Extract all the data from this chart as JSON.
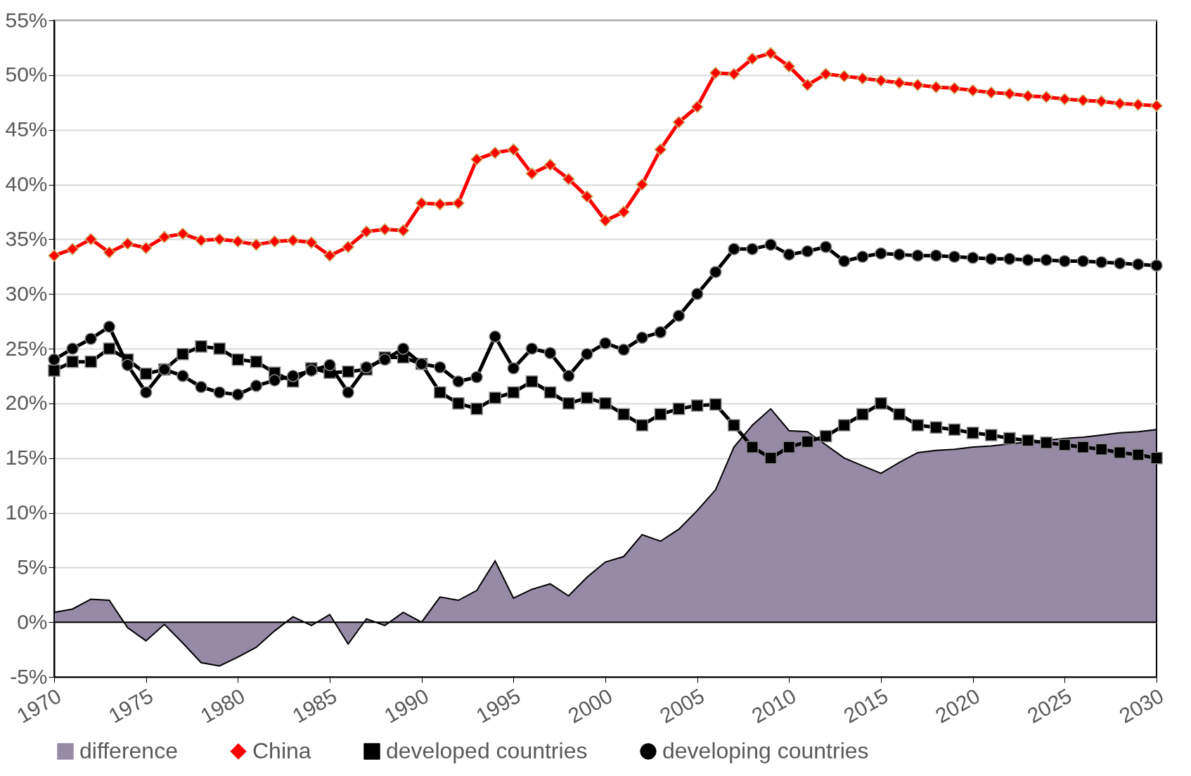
{
  "chart_data": {
    "type": "line",
    "x": [
      1970,
      1971,
      1972,
      1973,
      1974,
      1975,
      1976,
      1977,
      1978,
      1979,
      1980,
      1981,
      1982,
      1983,
      1984,
      1985,
      1986,
      1987,
      1988,
      1989,
      1990,
      1991,
      1992,
      1993,
      1994,
      1995,
      1996,
      1997,
      1998,
      1999,
      2000,
      2001,
      2002,
      2003,
      2004,
      2005,
      2006,
      2007,
      2008,
      2009,
      2010,
      2011,
      2012,
      2013,
      2014,
      2015,
      2016,
      2017,
      2018,
      2019,
      2020,
      2021,
      2022,
      2023,
      2024,
      2025,
      2026,
      2027,
      2028,
      2029,
      2030
    ],
    "series": [
      {
        "name": "difference",
        "type": "area",
        "color": "#978aa6",
        "values": [
          0.9,
          1.2,
          2.1,
          2.0,
          -0.5,
          -1.7,
          -0.2,
          -1.9,
          -3.7,
          -4.0,
          -3.2,
          -2.3,
          -0.8,
          0.5,
          -0.3,
          0.7,
          -2.0,
          0.3,
          -0.3,
          0.9,
          0.0,
          2.3,
          2.0,
          2.9,
          5.6,
          2.2,
          3.0,
          3.5,
          2.4,
          4.1,
          5.5,
          6.0,
          8.0,
          7.4,
          8.5,
          10.2,
          12.1,
          16.0,
          18.0,
          19.5,
          17.5,
          17.4,
          null,
          15.0,
          14.3,
          13.6,
          14.6,
          15.5,
          15.7,
          15.8,
          16.0,
          16.1,
          16.3,
          null,
          null,
          16.8,
          16.9,
          17.1,
          17.3,
          17.4,
          17.6
        ]
      },
      {
        "name": "China",
        "type": "line",
        "color": "#ff0000",
        "marker": "diamond",
        "values": [
          33.5,
          34.1,
          35.0,
          33.8,
          34.6,
          34.2,
          35.2,
          35.5,
          34.9,
          35.0,
          34.8,
          34.5,
          34.8,
          34.9,
          34.7,
          33.5,
          34.3,
          35.7,
          35.9,
          35.8,
          38.3,
          38.2,
          38.3,
          42.3,
          42.9,
          43.2,
          41.0,
          41.8,
          40.5,
          38.9,
          36.7,
          37.5,
          40.0,
          43.2,
          45.7,
          47.1,
          50.2,
          50.1,
          51.5,
          52.0,
          50.8,
          49.1,
          50.1,
          49.9,
          49.7,
          49.5,
          49.3,
          49.1,
          48.9,
          48.8,
          48.6,
          48.4,
          48.3,
          48.1,
          48.0,
          47.8,
          47.7,
          47.6,
          47.4,
          47.3,
          47.2
        ]
      },
      {
        "name": "developed countries",
        "type": "line",
        "color": "#000000",
        "marker": "square",
        "values": [
          23.0,
          23.8,
          23.8,
          25.0,
          24.0,
          22.7,
          23.1,
          24.5,
          25.2,
          25.0,
          24.0,
          23.8,
          22.8,
          22.0,
          23.2,
          22.8,
          22.9,
          23.1,
          24.2,
          24.2,
          23.6,
          21.0,
          20.0,
          19.5,
          20.5,
          21.0,
          22.0,
          21.0,
          20.0,
          20.5,
          20.0,
          19.0,
          18.0,
          19.0,
          19.5,
          19.8,
          19.9,
          18.0,
          16.0,
          15.0,
          16.0,
          16.5,
          17.0,
          18.0,
          19.0,
          20.0,
          19.0,
          18.0,
          17.8,
          17.6,
          17.3,
          17.1,
          16.8,
          16.6,
          16.4,
          16.2,
          16.0,
          15.8,
          15.5,
          15.3,
          15.0
        ]
      },
      {
        "name": "developing countries",
        "type": "line",
        "color": "#000000",
        "marker": "circle",
        "values": [
          24.0,
          25.0,
          25.9,
          27.0,
          23.5,
          21.0,
          23.1,
          22.5,
          21.5,
          21.0,
          20.8,
          21.6,
          22.1,
          22.5,
          23.0,
          23.5,
          21.0,
          23.3,
          24.0,
          25.0,
          23.6,
          23.3,
          22.0,
          22.4,
          26.1,
          23.2,
          25.0,
          24.6,
          22.5,
          24.5,
          25.5,
          24.9,
          26.0,
          26.5,
          28.0,
          30.0,
          32.0,
          34.1,
          34.1,
          34.5,
          33.6,
          33.9,
          34.3,
          33.0,
          33.4,
          33.7,
          33.6,
          33.5,
          33.5,
          33.4,
          33.3,
          33.2,
          33.2,
          33.1,
          33.1,
          33.0,
          33.0,
          32.9,
          32.8,
          32.7,
          32.6
        ]
      }
    ],
    "xlim": [
      1970,
      2030
    ],
    "xticks": [
      1970,
      1975,
      1980,
      1985,
      1990,
      1995,
      2000,
      2005,
      2010,
      2015,
      2020,
      2025,
      2030
    ],
    "ylim": [
      -5,
      55
    ],
    "yticks": [
      {
        "value": -5,
        "label": "-5%"
      },
      {
        "value": 0,
        "label": "0%"
      },
      {
        "value": 5,
        "label": "5%"
      },
      {
        "value": 10,
        "label": "10%"
      },
      {
        "value": 15,
        "label": "15%"
      },
      {
        "value": 20,
        "label": "20%"
      },
      {
        "value": 25,
        "label": "25%"
      },
      {
        "value": 30,
        "label": "30%"
      },
      {
        "value": 35,
        "label": "35%"
      },
      {
        "value": 40,
        "label": "40%"
      },
      {
        "value": 45,
        "label": "45%"
      },
      {
        "value": 50,
        "label": "50%"
      },
      {
        "value": 55,
        "label": "55%"
      }
    ],
    "grid": "y",
    "legend": "bottom",
    "line_style": "solid"
  }
}
